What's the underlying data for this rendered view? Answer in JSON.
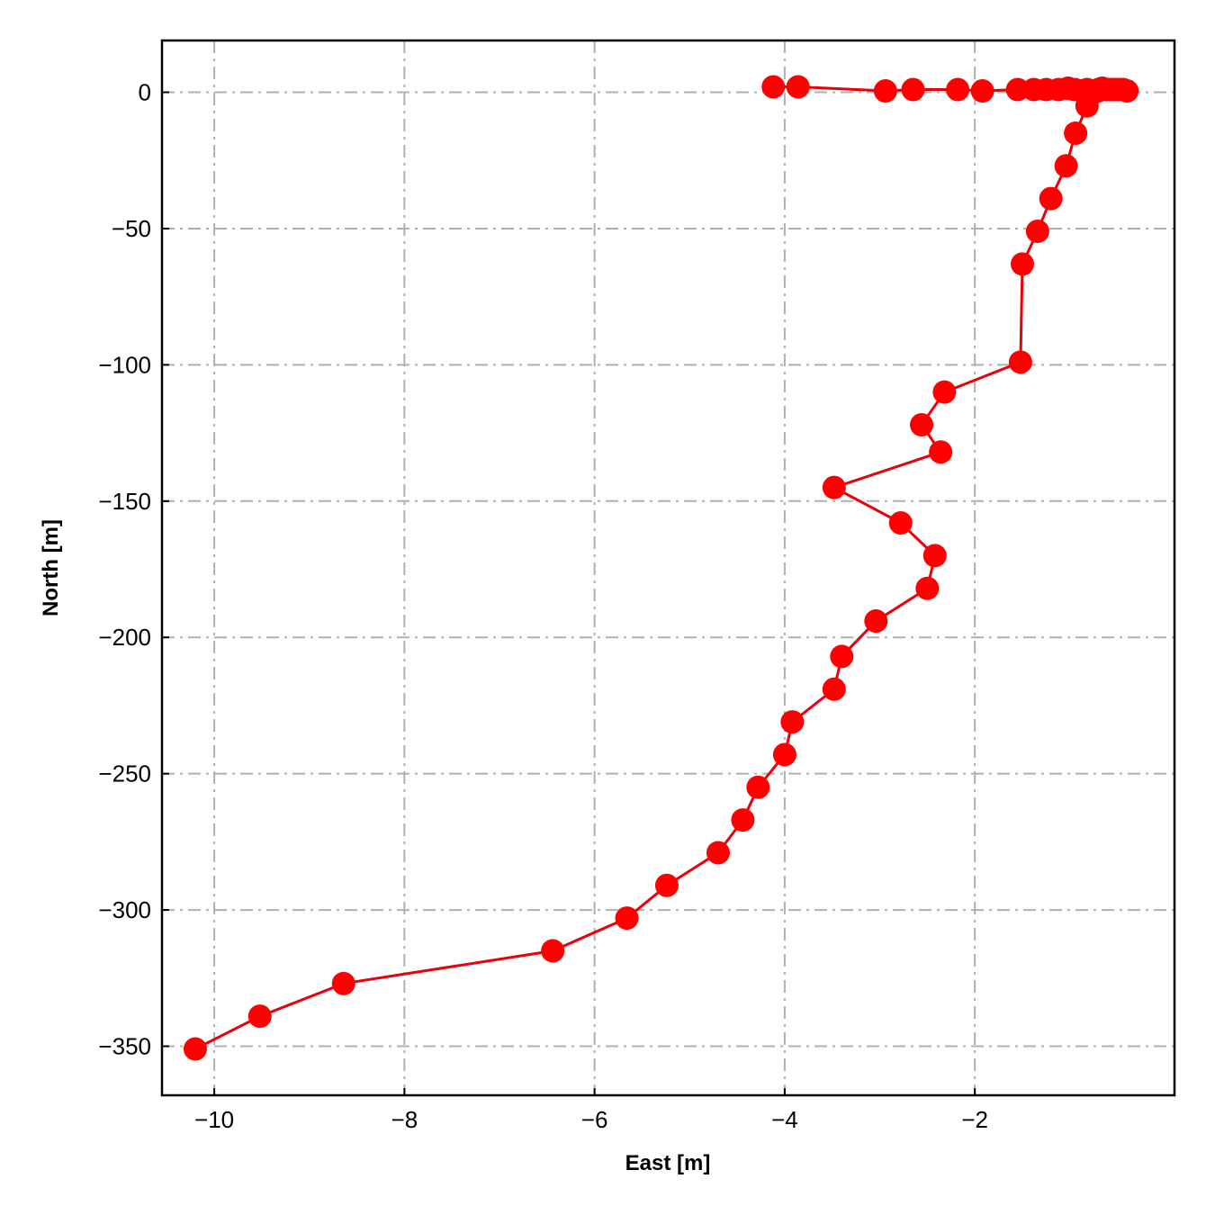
{
  "chart_data": {
    "type": "line",
    "title": "",
    "xlabel": "East [m]",
    "ylabel": "North [m]",
    "xlim": [
      -10.55,
      0.1
    ],
    "ylim": [
      -368,
      19
    ],
    "xticks": [
      -10,
      -8,
      -6,
      -4,
      -2
    ],
    "xtick_labels": [
      "−10",
      "−8",
      "−6",
      "−4",
      "−2"
    ],
    "yticks": [
      0,
      -50,
      -100,
      -150,
      -200,
      -250,
      -300,
      -350
    ],
    "ytick_labels": [
      "0",
      "−50",
      "−100",
      "−150",
      "−200",
      "−250",
      "−300",
      "−350"
    ],
    "grid": true,
    "color": "#e8000b",
    "marker_color": "#ff0000",
    "series": [
      {
        "x": [
          -4.12,
          -3.86,
          -2.94,
          -2.65,
          -2.18,
          -1.92,
          -1.55,
          -1.38,
          -1.25,
          -1.12,
          -1.02,
          -0.95,
          -0.88,
          -0.82,
          -0.76,
          -0.7,
          -0.66,
          -0.62,
          -0.58,
          -0.55,
          -0.52,
          -0.48,
          -0.44,
          -0.4,
          -0.82,
          -0.94,
          -1.04,
          -1.2,
          -1.34,
          -1.5,
          -1.52,
          -2.32,
          -2.56,
          -2.36,
          -3.48,
          -2.78,
          -2.42,
          -2.5,
          -3.04,
          -3.4,
          -3.48,
          -3.92,
          -4.0,
          -4.28,
          -4.44,
          -4.7,
          -5.24,
          -5.66,
          -6.44,
          -8.64,
          -9.52,
          -10.2
        ],
        "y": [
          2,
          2,
          0.5,
          1,
          1,
          0.5,
          1,
          1,
          1,
          1,
          1.5,
          1,
          0.5,
          1,
          0.5,
          1,
          1.5,
          1,
          1,
          1,
          1,
          1,
          1,
          0.5,
          -5,
          -15,
          -27,
          -39,
          -51,
          -63,
          -99,
          -110,
          -122,
          -132,
          -145,
          -158,
          -170,
          -182,
          -194,
          -207,
          -219,
          -231,
          -243,
          -255,
          -267,
          -279,
          -291,
          -303,
          -315,
          -327,
          -339,
          -351
        ]
      }
    ]
  }
}
